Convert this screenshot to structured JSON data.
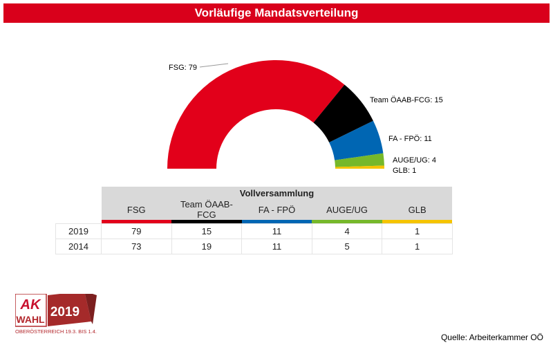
{
  "title": "Vorläufige Mandatsverteilung",
  "chart_data": {
    "type": "pie",
    "subtype": "half-donut",
    "title": "Vorläufige Mandatsverteilung",
    "categories": [
      "FSG",
      "Team ÖAAB-FCG",
      "FA - FPÖ",
      "AUGE/UG",
      "GLB"
    ],
    "values": [
      79,
      15,
      11,
      4,
      1
    ],
    "labels": [
      "FSG: 79",
      "Team ÖAAB-FCG: 15",
      "FA - FPÖ: 11",
      "AUGE/UG: 4",
      "GLB: 1"
    ],
    "colors": [
      "#e2001a",
      "#000000",
      "#0066b3",
      "#76b82a",
      "#f5c400"
    ]
  },
  "table": {
    "title": "Vollversammlung",
    "columns": [
      "FSG",
      "Team ÖAAB-FCG",
      "FA - FPÖ",
      "AUGE/UG",
      "GLB"
    ],
    "rows": [
      {
        "year": "2019",
        "values": [
          "79",
          "15",
          "11",
          "4",
          "1"
        ]
      },
      {
        "year": "2014",
        "values": [
          "73",
          "19",
          "11",
          "5",
          "1"
        ]
      }
    ]
  },
  "logo": {
    "ak": "AK",
    "wahl": "WAHL",
    "year": "2019",
    "subtitle": "OBERÖSTERREICH 19.3. BIS 1.4."
  },
  "source": "Quelle: Arbeiterkammer OÖ"
}
